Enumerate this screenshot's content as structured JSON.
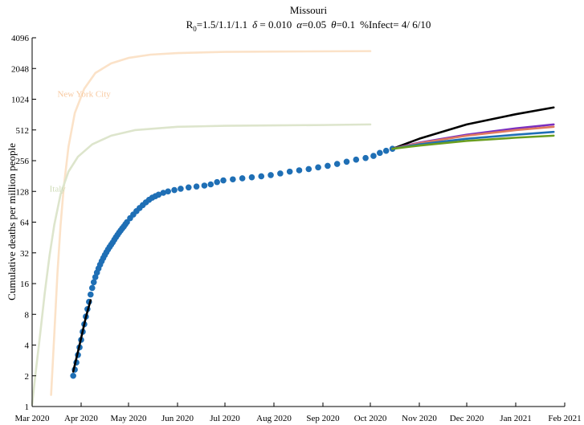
{
  "chart_data": {
    "type": "line",
    "title": "Missouri",
    "subtitle_parts": {
      "r0_prefix": "R",
      "r0_sub": "0",
      "r0_values": "=1.5/1.1/1.1",
      "delta_sym": "δ",
      "delta_val": " = 0.010",
      "alpha_sym": "α",
      "alpha_val": "=0.05",
      "theta_sym": "θ",
      "theta_val": "=0.1",
      "infect": "%Infect= 4/ 6/10"
    },
    "ylabel": "Cumulative deaths per million people",
    "xlabel": "",
    "yscale": "log2",
    "ylim": [
      1,
      4096
    ],
    "yticks": [
      1,
      2,
      4,
      8,
      16,
      32,
      64,
      128,
      256,
      512,
      1024,
      2048,
      4096
    ],
    "xlim": [
      "2020-03-01",
      "2021-02-01"
    ],
    "xticks": [
      {
        "date": "2020-03-01",
        "label": "Mar 2020"
      },
      {
        "date": "2020-04-01",
        "label": "Apr 2020"
      },
      {
        "date": "2020-05-01",
        "label": "May 2020"
      },
      {
        "date": "2020-06-01",
        "label": "Jun 2020"
      },
      {
        "date": "2020-07-01",
        "label": "Jul 2020"
      },
      {
        "date": "2020-08-01",
        "label": "Aug 2020"
      },
      {
        "date": "2020-09-01",
        "label": "Sep 2020"
      },
      {
        "date": "2020-10-01",
        "label": "Oct 2020"
      },
      {
        "date": "2020-11-01",
        "label": "Nov 2020"
      },
      {
        "date": "2020-12-01",
        "label": "Dec 2020"
      },
      {
        "date": "2021-01-01",
        "label": "Jan 2021"
      },
      {
        "date": "2021-02-01",
        "label": "Feb 2021"
      }
    ],
    "grid": false,
    "annotations": [
      {
        "text": "New York City",
        "date": "2020-03-17",
        "y": 1080,
        "color": "#f8c9a0"
      },
      {
        "text": "Italy",
        "date": "2020-03-12",
        "y": 128,
        "color": "#cfdcb8"
      }
    ],
    "series": [
      {
        "color": "#fbe2c8",
        "style": "line",
        "points": [
          [
            "2020-03-13",
            1.3
          ],
          [
            "2020-03-15",
            5
          ],
          [
            "2020-03-17",
            20
          ],
          [
            "2020-03-19",
            60
          ],
          [
            "2020-03-21",
            140
          ],
          [
            "2020-03-24",
            350
          ],
          [
            "2020-03-28",
            750
          ],
          [
            "2020-04-03",
            1300
          ],
          [
            "2020-04-10",
            1850
          ],
          [
            "2020-04-20",
            2300
          ],
          [
            "2020-05-01",
            2600
          ],
          [
            "2020-05-15",
            2800
          ],
          [
            "2020-06-01",
            2900
          ],
          [
            "2020-07-01",
            2980
          ],
          [
            "2020-08-01",
            3000
          ],
          [
            "2020-10-01",
            3030
          ]
        ]
      },
      {
        "color": "#dde5cc",
        "style": "line",
        "points": [
          [
            "2020-03-01",
            1.05
          ],
          [
            "2020-03-03",
            2
          ],
          [
            "2020-03-06",
            5
          ],
          [
            "2020-03-09",
            13
          ],
          [
            "2020-03-12",
            30
          ],
          [
            "2020-03-15",
            60
          ],
          [
            "2020-03-19",
            120
          ],
          [
            "2020-03-24",
            200
          ],
          [
            "2020-03-30",
            280
          ],
          [
            "2020-04-08",
            370
          ],
          [
            "2020-04-20",
            450
          ],
          [
            "2020-05-05",
            510
          ],
          [
            "2020-06-01",
            550
          ],
          [
            "2020-07-01",
            562
          ],
          [
            "2020-08-01",
            568
          ],
          [
            "2020-09-01",
            572
          ],
          [
            "2020-10-01",
            580
          ]
        ]
      },
      {
        "color": "#1f6fb5",
        "style": "markers",
        "points": [
          [
            "2020-03-27",
            2
          ],
          [
            "2020-03-28",
            2.3
          ],
          [
            "2020-03-29",
            2.7
          ],
          [
            "2020-03-30",
            3.2
          ],
          [
            "2020-03-31",
            3.8
          ],
          [
            "2020-04-01",
            4.5
          ],
          [
            "2020-04-02",
            5.4
          ],
          [
            "2020-04-03",
            6.4
          ],
          [
            "2020-04-04",
            7.6
          ],
          [
            "2020-04-05",
            9
          ],
          [
            "2020-04-06",
            10.6
          ],
          [
            "2020-04-07",
            12.5
          ],
          [
            "2020-04-08",
            14.5
          ],
          [
            "2020-04-09",
            16.5
          ],
          [
            "2020-04-10",
            18.5
          ],
          [
            "2020-04-11",
            20.5
          ],
          [
            "2020-04-12",
            22.5
          ],
          [
            "2020-04-13",
            24.5
          ],
          [
            "2020-04-14",
            26.5
          ],
          [
            "2020-04-15",
            28.5
          ],
          [
            "2020-04-16",
            30.5
          ],
          [
            "2020-04-17",
            32.5
          ],
          [
            "2020-04-18",
            34.5
          ],
          [
            "2020-04-19",
            36.5
          ],
          [
            "2020-04-20",
            38.5
          ],
          [
            "2020-04-21",
            40.5
          ],
          [
            "2020-04-22",
            43
          ],
          [
            "2020-04-23",
            45.5
          ],
          [
            "2020-04-24",
            48
          ],
          [
            "2020-04-25",
            50.5
          ],
          [
            "2020-04-26",
            53
          ],
          [
            "2020-04-27",
            55.5
          ],
          [
            "2020-04-28",
            58
          ],
          [
            "2020-04-29",
            61
          ],
          [
            "2020-04-30",
            64
          ],
          [
            "2020-05-02",
            70
          ],
          [
            "2020-05-04",
            76
          ],
          [
            "2020-05-06",
            82
          ],
          [
            "2020-05-08",
            88
          ],
          [
            "2020-05-10",
            94
          ],
          [
            "2020-05-12",
            100
          ],
          [
            "2020-05-14",
            106
          ],
          [
            "2020-05-16",
            111
          ],
          [
            "2020-05-18",
            115
          ],
          [
            "2020-05-20",
            119
          ],
          [
            "2020-05-23",
            124
          ],
          [
            "2020-05-26",
            128
          ],
          [
            "2020-05-30",
            132
          ],
          [
            "2020-06-03",
            136
          ],
          [
            "2020-06-08",
            140
          ],
          [
            "2020-06-13",
            143
          ],
          [
            "2020-06-18",
            146
          ],
          [
            "2020-06-22",
            150
          ],
          [
            "2020-06-26",
            158
          ],
          [
            "2020-06-30",
            164
          ],
          [
            "2020-07-06",
            168
          ],
          [
            "2020-07-12",
            172
          ],
          [
            "2020-07-18",
            176
          ],
          [
            "2020-07-24",
            180
          ],
          [
            "2020-07-30",
            185
          ],
          [
            "2020-08-05",
            192
          ],
          [
            "2020-08-11",
            200
          ],
          [
            "2020-08-17",
            206
          ],
          [
            "2020-08-23",
            212
          ],
          [
            "2020-08-29",
            220
          ],
          [
            "2020-09-04",
            228
          ],
          [
            "2020-09-10",
            238
          ],
          [
            "2020-09-16",
            250
          ],
          [
            "2020-09-22",
            262
          ],
          [
            "2020-09-28",
            272
          ],
          [
            "2020-10-03",
            285
          ],
          [
            "2020-10-07",
            305
          ],
          [
            "2020-10-11",
            320
          ],
          [
            "2020-10-15",
            335
          ]
        ]
      },
      {
        "color": "#000000",
        "style": "line",
        "points": [
          [
            "2020-03-27",
            2.2
          ],
          [
            "2020-03-31",
            4
          ],
          [
            "2020-04-04",
            7.5
          ],
          [
            "2020-04-07",
            11
          ]
        ]
      },
      {
        "color": "#000000",
        "style": "line",
        "points": [
          [
            "2020-10-15",
            335
          ],
          [
            "2020-11-01",
            420
          ],
          [
            "2020-12-01",
            580
          ],
          [
            "2021-01-01",
            730
          ],
          [
            "2021-01-25",
            850
          ]
        ]
      },
      {
        "color": "#7b2fbf",
        "style": "line",
        "points": [
          [
            "2020-10-15",
            335
          ],
          [
            "2020-11-01",
            385
          ],
          [
            "2020-12-01",
            460
          ],
          [
            "2021-01-01",
            530
          ],
          [
            "2021-01-25",
            580
          ]
        ]
      },
      {
        "color": "#e07a5f",
        "style": "line",
        "points": [
          [
            "2020-10-15",
            335
          ],
          [
            "2020-11-01",
            380
          ],
          [
            "2020-12-01",
            450
          ],
          [
            "2021-01-01",
            510
          ],
          [
            "2021-01-25",
            550
          ]
        ]
      },
      {
        "color": "#1f6fb5",
        "style": "line",
        "points": [
          [
            "2020-10-15",
            335
          ],
          [
            "2020-11-01",
            370
          ],
          [
            "2020-12-01",
            420
          ],
          [
            "2021-01-01",
            460
          ],
          [
            "2021-01-25",
            490
          ]
        ]
      },
      {
        "color": "#6a9e1f",
        "style": "line",
        "points": [
          [
            "2020-10-15",
            335
          ],
          [
            "2020-11-01",
            360
          ],
          [
            "2020-12-01",
            400
          ],
          [
            "2021-01-01",
            430
          ],
          [
            "2021-01-25",
            450
          ]
        ]
      }
    ]
  }
}
